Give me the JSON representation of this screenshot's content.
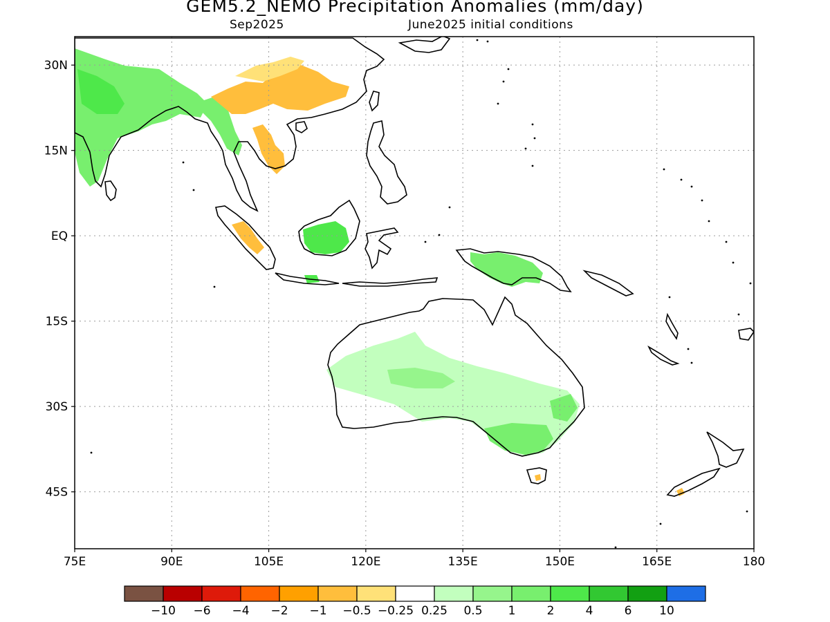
{
  "title": "GEM5.2_NEMO Precipitation Anomalies (mm/day)",
  "subtitle_left": "Sep2025",
  "subtitle_right": "June2025 initial conditions",
  "map": {
    "lon_range": [
      75,
      180
    ],
    "lat_range": [
      -55,
      35
    ],
    "grid": true,
    "x_ticks": [
      {
        "lon": 75,
        "label": "75E"
      },
      {
        "lon": 90,
        "label": "90E"
      },
      {
        "lon": 105,
        "label": "105E"
      },
      {
        "lon": 120,
        "label": "120E"
      },
      {
        "lon": 135,
        "label": "135E"
      },
      {
        "lon": 150,
        "label": "150E"
      },
      {
        "lon": 165,
        "label": "165E"
      },
      {
        "lon": 180,
        "label": "180"
      }
    ],
    "y_ticks": [
      {
        "lat": 30,
        "label": "30N"
      },
      {
        "lat": 15,
        "label": "15N"
      },
      {
        "lat": 0,
        "label": "EQ"
      },
      {
        "lat": -15,
        "label": "15S"
      },
      {
        "lat": -30,
        "label": "30S"
      },
      {
        "lat": -45,
        "label": "45S"
      }
    ]
  },
  "colorbar": {
    "colors": [
      "#7a5242",
      "#b90000",
      "#de1a0a",
      "#ff6400",
      "#ffa000",
      "#ffbe3c",
      "#ffe178",
      "#ffffff",
      "#c2ffbe",
      "#96f58c",
      "#78ef6e",
      "#4ee84a",
      "#32c832",
      "#12a012",
      "#1e6ee6"
    ],
    "labels": [
      "-10",
      "-6",
      "-4",
      "-2",
      "-1",
      "-0.5",
      "-0.25",
      "0.25",
      "0.5",
      "1",
      "2",
      "4",
      "6",
      "10"
    ]
  },
  "anomalies": [
    {
      "region": "australia-interior",
      "lvl": 8,
      "lon": 124,
      "lat": -25
    },
    {
      "region": "australia-central-core",
      "lvl": 9,
      "lon": 128,
      "lat": -24
    },
    {
      "region": "australia-se",
      "lvl": 10,
      "lon": 145,
      "lat": -36
    },
    {
      "region": "australia-se-coast",
      "lvl": 10,
      "lon": 150,
      "lat": -31
    },
    {
      "region": "india-ne",
      "lvl": 10,
      "lon": 80,
      "lat": 26
    },
    {
      "region": "india-core",
      "lvl": 11,
      "lon": 78,
      "lat": 25
    },
    {
      "region": "bangladesh-myanmar",
      "lvl": 10,
      "lon": 92,
      "lat": 25
    },
    {
      "region": "china-south",
      "lvl": 5,
      "lon": 108,
      "lat": 28
    },
    {
      "region": "china-east",
      "lvl": 6,
      "lon": 114,
      "lat": 27
    },
    {
      "region": "indochina",
      "lvl": 5,
      "lon": 104,
      "lat": 17
    },
    {
      "region": "sumatra",
      "lvl": 5,
      "lon": 101,
      "lat": 0
    },
    {
      "region": "borneo",
      "lvl": 11,
      "lon": 113,
      "lat": -1
    },
    {
      "region": "new-guinea",
      "lvl": 10,
      "lon": 142,
      "lat": -5
    },
    {
      "region": "java-east",
      "lvl": 11,
      "lon": 114,
      "lat": -7
    },
    {
      "region": "tasmania",
      "lvl": 5,
      "lon": 147,
      "lat": -42
    },
    {
      "region": "new-zealand",
      "lvl": 5,
      "lon": 168,
      "lat": -45
    }
  ]
}
